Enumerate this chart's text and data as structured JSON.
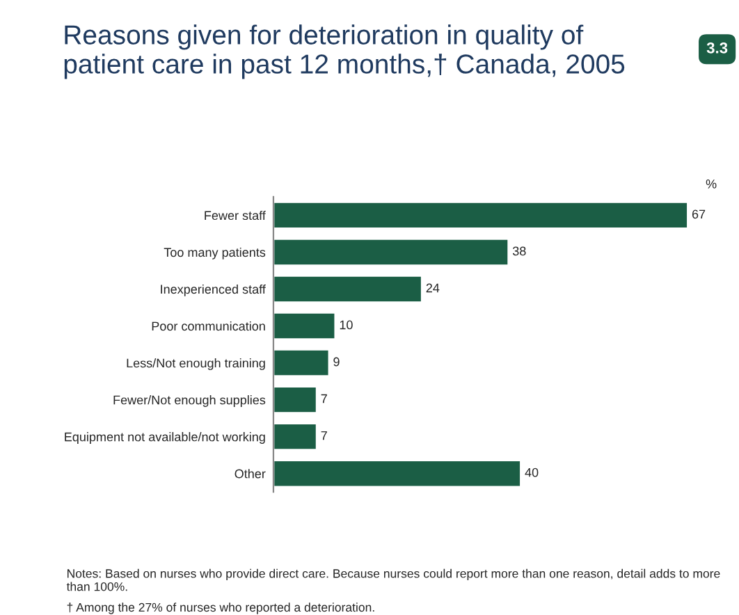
{
  "chart_data": {
    "type": "bar",
    "orientation": "horizontal",
    "title": "Reasons given for deterioration in quality of\npatient care in past 12 months,† Canada, 2005",
    "categories": [
      "Fewer staff",
      "Too many patients",
      "Inexperienced staff",
      "Poor communication",
      "Less/Not enough training",
      "Fewer/Not enough supplies",
      "Equipment not available/not working",
      "Other"
    ],
    "values": [
      67,
      38,
      24,
      10,
      9,
      7,
      7,
      40
    ],
    "color": "#1b5e45",
    "data_labels": true,
    "xlabel": "%",
    "annotations": [
      "3.3",
      "Notes: Based on nurses who provide direct care. Because nurses could report more than one reason, detail adds to more than 100%.",
      "† Among the 27% of nurses who reported a deterioration."
    ]
  }
}
